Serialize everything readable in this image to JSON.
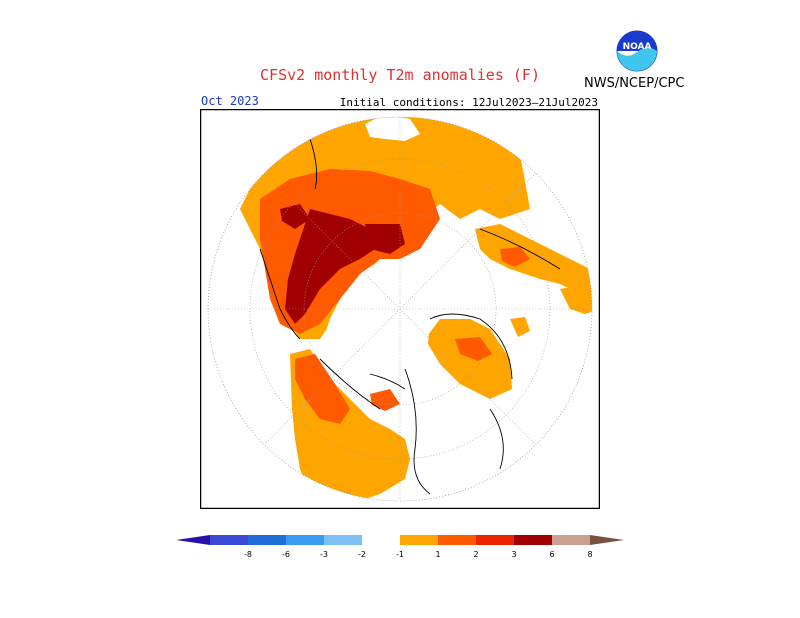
{
  "title": "CFSv2 monthly T2m anomalies (F)",
  "agency": "NWS/NCEP/CPC",
  "logo_text": "NOAA",
  "period": "Oct 2023",
  "initial_conditions": "Initial conditions: 12Jul2023–21Jul2023",
  "legend": {
    "ticks": [
      "-8",
      "-6",
      "-3",
      "-2",
      "-1",
      "1",
      "2",
      "3",
      "6",
      "8"
    ],
    "colors": [
      "#2a0ea8",
      "#3b4bd8",
      "#1f6fd6",
      "#3a9af0",
      "#7cc0f5",
      "#ffffff",
      "#ffa500",
      "#ff5a00",
      "#ee2400",
      "#a00000",
      "#c9a090",
      "#7a5040"
    ]
  },
  "colors": {
    "title": "#e03030",
    "period": "#1a3acc",
    "anomaly_1_2": "#ffa500",
    "anomaly_2_3": "#ff5a00",
    "anomaly_3_6": "#ee2400",
    "anomaly_6_8": "#a00000"
  }
}
